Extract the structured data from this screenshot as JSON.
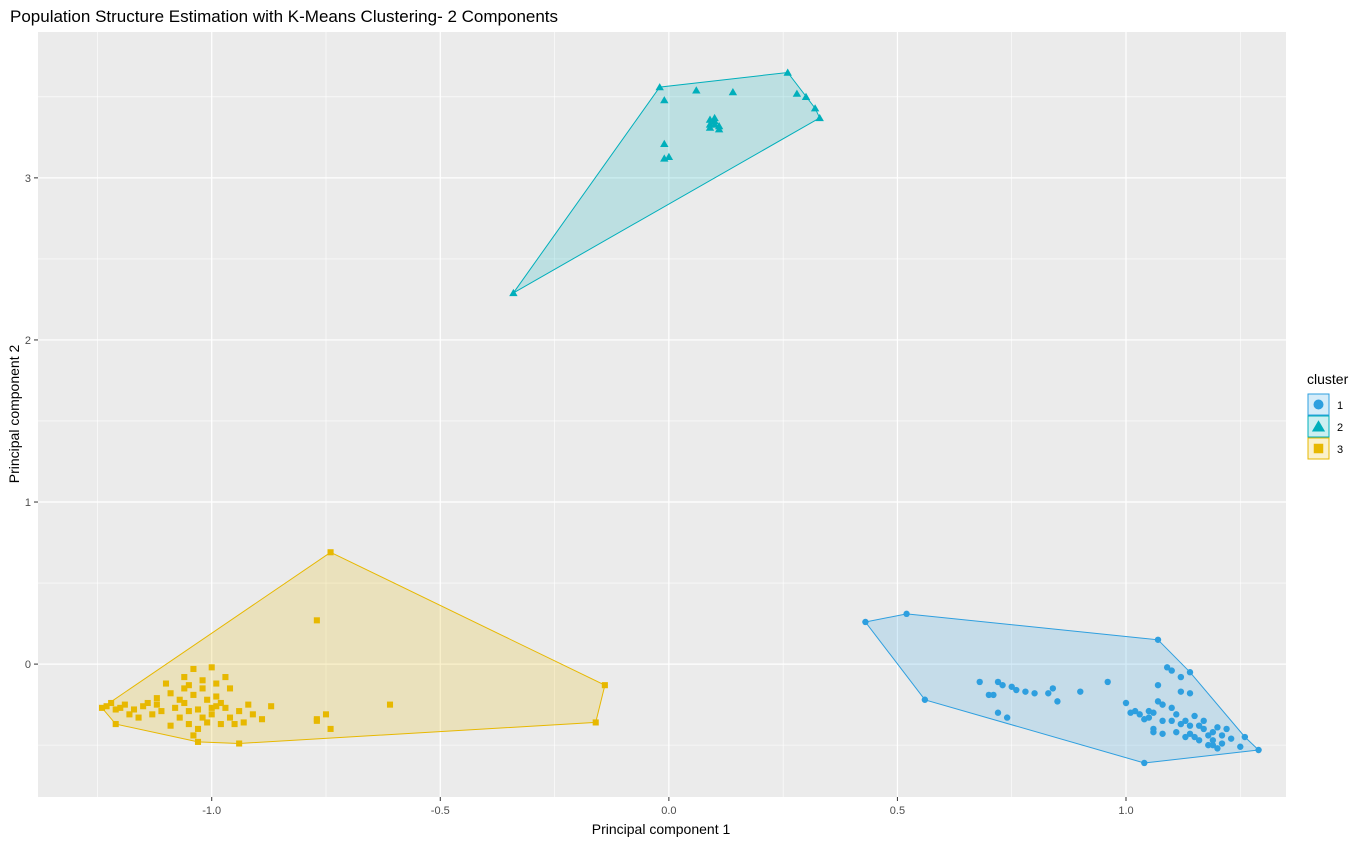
{
  "chart_data": {
    "type": "scatter",
    "title": "Population Structure Estimation with K-Means Clustering- 2 Components",
    "xlabel": "Principal component 1",
    "ylabel": "Principal component 2",
    "xlim": [
      -1.38,
      1.35
    ],
    "ylim": [
      -0.82,
      3.9
    ],
    "x_ticks": [
      -1.0,
      -0.5,
      0.0,
      0.5,
      1.0
    ],
    "x_tick_labels": [
      "-1.0",
      "-0.5",
      "0.0",
      "0.5",
      "1.0"
    ],
    "y_ticks": [
      0,
      1,
      2,
      3
    ],
    "y_tick_labels": [
      "0",
      "1",
      "2",
      "3"
    ],
    "grid": true,
    "panel_background": "#EBEBEB",
    "legend": {
      "title": "cluster",
      "position": "right",
      "items": [
        {
          "label": "1",
          "shape": "circle",
          "color": "#2E9FDF"
        },
        {
          "label": "2",
          "shape": "triangle",
          "color": "#00AFBB"
        },
        {
          "label": "3",
          "shape": "square",
          "color": "#E7B800"
        }
      ]
    },
    "series": [
      {
        "name": "1",
        "shape": "circle",
        "color": "#2E9FDF",
        "hull": [
          [
            0.43,
            0.26
          ],
          [
            0.52,
            0.31
          ],
          [
            1.07,
            0.15
          ],
          [
            1.14,
            -0.05
          ],
          [
            1.26,
            -0.45
          ],
          [
            1.29,
            -0.53
          ],
          [
            1.04,
            -0.61
          ],
          [
            0.56,
            -0.22
          ]
        ],
        "points": [
          [
            0.43,
            0.26
          ],
          [
            0.52,
            0.31
          ],
          [
            1.07,
            0.15
          ],
          [
            1.14,
            -0.05
          ],
          [
            1.26,
            -0.45
          ],
          [
            1.29,
            -0.53
          ],
          [
            1.04,
            -0.61
          ],
          [
            0.56,
            -0.22
          ],
          [
            0.68,
            -0.11
          ],
          [
            0.7,
            -0.19
          ],
          [
            0.71,
            -0.19
          ],
          [
            0.72,
            -0.11
          ],
          [
            0.73,
            -0.13
          ],
          [
            0.75,
            -0.14
          ],
          [
            0.76,
            -0.16
          ],
          [
            0.78,
            -0.17
          ],
          [
            0.8,
            -0.18
          ],
          [
            0.83,
            -0.18
          ],
          [
            0.84,
            -0.15
          ],
          [
            0.85,
            -0.23
          ],
          [
            0.74,
            -0.33
          ],
          [
            0.72,
            -0.3
          ],
          [
            0.9,
            -0.17
          ],
          [
            0.96,
            -0.11
          ],
          [
            1.0,
            -0.24
          ],
          [
            1.02,
            -0.29
          ],
          [
            1.03,
            -0.31
          ],
          [
            1.04,
            -0.34
          ],
          [
            1.05,
            -0.29
          ],
          [
            1.05,
            -0.33
          ],
          [
            1.06,
            -0.3
          ],
          [
            1.06,
            -0.4
          ],
          [
            1.07,
            -0.13
          ],
          [
            1.07,
            -0.23
          ],
          [
            1.08,
            -0.25
          ],
          [
            1.08,
            -0.35
          ],
          [
            1.08,
            -0.43
          ],
          [
            1.09,
            -0.02
          ],
          [
            1.1,
            -0.04
          ],
          [
            1.1,
            -0.27
          ],
          [
            1.1,
            -0.35
          ],
          [
            1.11,
            -0.31
          ],
          [
            1.11,
            -0.42
          ],
          [
            1.12,
            -0.37
          ],
          [
            1.13,
            -0.35
          ],
          [
            1.13,
            -0.45
          ],
          [
            1.14,
            -0.38
          ],
          [
            1.14,
            -0.43
          ],
          [
            1.15,
            -0.32
          ],
          [
            1.15,
            -0.45
          ],
          [
            1.16,
            -0.38
          ],
          [
            1.16,
            -0.47
          ],
          [
            1.17,
            -0.4
          ],
          [
            1.17,
            -0.35
          ],
          [
            1.18,
            -0.44
          ],
          [
            1.18,
            -0.5
          ],
          [
            1.19,
            -0.42
          ],
          [
            1.19,
            -0.47
          ],
          [
            1.2,
            -0.52
          ],
          [
            1.2,
            -0.39
          ],
          [
            1.21,
            -0.44
          ],
          [
            1.21,
            -0.49
          ],
          [
            1.22,
            -0.4
          ],
          [
            1.23,
            -0.46
          ],
          [
            1.12,
            -0.08
          ],
          [
            1.12,
            -0.17
          ],
          [
            1.14,
            -0.18
          ],
          [
            1.19,
            -0.5
          ],
          [
            1.25,
            -0.51
          ],
          [
            1.01,
            -0.3
          ],
          [
            1.06,
            -0.42
          ]
        ]
      },
      {
        "name": "2",
        "shape": "triangle",
        "color": "#00AFBB",
        "hull": [
          [
            -0.34,
            2.29
          ],
          [
            -0.02,
            3.56
          ],
          [
            0.26,
            3.65
          ],
          [
            0.32,
            3.43
          ],
          [
            0.33,
            3.37
          ]
        ],
        "points": [
          [
            -0.34,
            2.29
          ],
          [
            -0.02,
            3.56
          ],
          [
            0.26,
            3.65
          ],
          [
            0.32,
            3.43
          ],
          [
            0.33,
            3.37
          ],
          [
            -0.01,
            3.48
          ],
          [
            0.06,
            3.54
          ],
          [
            0.14,
            3.53
          ],
          [
            0.28,
            3.52
          ],
          [
            0.3,
            3.5
          ],
          [
            -0.01,
            3.21
          ],
          [
            -0.01,
            3.12
          ],
          [
            0.0,
            3.13
          ],
          [
            0.09,
            3.36
          ],
          [
            0.1,
            3.35
          ],
          [
            0.09,
            3.33
          ],
          [
            0.1,
            3.33
          ],
          [
            0.11,
            3.32
          ],
          [
            0.09,
            3.31
          ],
          [
            0.11,
            3.3
          ],
          [
            0.1,
            3.37
          ]
        ]
      },
      {
        "name": "3",
        "shape": "square",
        "color": "#E7B800",
        "hull": [
          [
            -1.24,
            -0.27
          ],
          [
            -0.74,
            0.69
          ],
          [
            -0.14,
            -0.13
          ],
          [
            -0.16,
            -0.36
          ],
          [
            -0.94,
            -0.49
          ],
          [
            -1.03,
            -0.48
          ],
          [
            -1.21,
            -0.37
          ]
        ],
        "points": [
          [
            -1.24,
            -0.27
          ],
          [
            -0.74,
            0.69
          ],
          [
            -0.14,
            -0.13
          ],
          [
            -0.16,
            -0.36
          ],
          [
            -0.94,
            -0.49
          ],
          [
            -1.03,
            -0.48
          ],
          [
            -1.21,
            -0.37
          ],
          [
            -1.23,
            -0.26
          ],
          [
            -1.22,
            -0.24
          ],
          [
            -1.21,
            -0.28
          ],
          [
            -1.2,
            -0.27
          ],
          [
            -1.19,
            -0.25
          ],
          [
            -1.18,
            -0.31
          ],
          [
            -1.17,
            -0.28
          ],
          [
            -1.16,
            -0.33
          ],
          [
            -1.15,
            -0.26
          ],
          [
            -1.14,
            -0.24
          ],
          [
            -1.13,
            -0.31
          ],
          [
            -1.12,
            -0.25
          ],
          [
            -1.12,
            -0.21
          ],
          [
            -1.11,
            -0.29
          ],
          [
            -1.1,
            -0.12
          ],
          [
            -1.09,
            -0.18
          ],
          [
            -1.09,
            -0.38
          ],
          [
            -1.08,
            -0.27
          ],
          [
            -1.07,
            -0.22
          ],
          [
            -1.07,
            -0.33
          ],
          [
            -1.06,
            -0.15
          ],
          [
            -1.06,
            -0.24
          ],
          [
            -1.05,
            -0.13
          ],
          [
            -1.05,
            -0.29
          ],
          [
            -1.05,
            -0.37
          ],
          [
            -1.04,
            -0.03
          ],
          [
            -1.04,
            -0.19
          ],
          [
            -1.04,
            -0.44
          ],
          [
            -1.03,
            -0.28
          ],
          [
            -1.03,
            -0.4
          ],
          [
            -1.02,
            -0.15
          ],
          [
            -1.02,
            -0.33
          ],
          [
            -1.01,
            -0.22
          ],
          [
            -1.01,
            -0.36
          ],
          [
            -1.0,
            -0.27
          ],
          [
            -1.0,
            -0.31
          ],
          [
            -1.0,
            -0.02
          ],
          [
            -0.99,
            -0.2
          ],
          [
            -0.99,
            -0.26
          ],
          [
            -0.98,
            -0.24
          ],
          [
            -0.98,
            -0.37
          ],
          [
            -0.97,
            -0.08
          ],
          [
            -0.97,
            -0.27
          ],
          [
            -0.96,
            -0.15
          ],
          [
            -0.96,
            -0.33
          ],
          [
            -0.95,
            -0.37
          ],
          [
            -0.94,
            -0.29
          ],
          [
            -0.93,
            -0.36
          ],
          [
            -0.92,
            -0.25
          ],
          [
            -0.91,
            -0.31
          ],
          [
            -0.89,
            -0.34
          ],
          [
            -0.87,
            -0.26
          ],
          [
            -0.77,
            -0.34
          ],
          [
            -0.77,
            -0.35
          ],
          [
            -0.75,
            -0.31
          ],
          [
            -0.74,
            -0.4
          ],
          [
            -0.77,
            0.27
          ],
          [
            -0.61,
            -0.25
          ],
          [
            -1.06,
            -0.08
          ],
          [
            -1.02,
            -0.1
          ],
          [
            -0.99,
            -0.12
          ]
        ]
      }
    ]
  }
}
